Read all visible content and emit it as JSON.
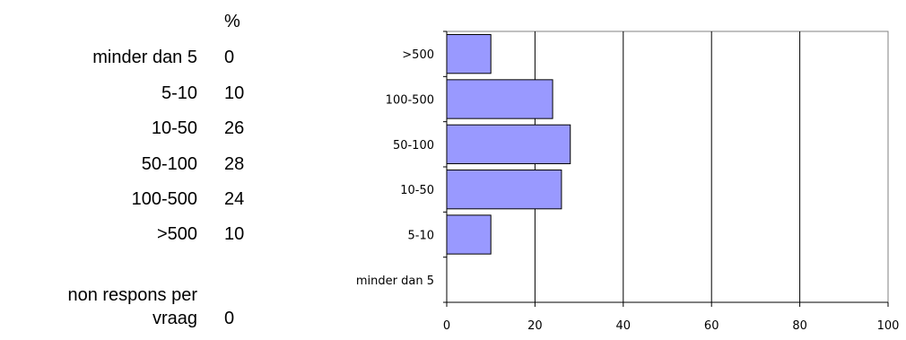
{
  "table": {
    "percent_header": "%",
    "rows": [
      {
        "label": "minder dan 5",
        "value": "0"
      },
      {
        "label": "5-10",
        "value": "10"
      },
      {
        "label": "10-50",
        "value": "26"
      },
      {
        "label": "50-100",
        "value": "28"
      },
      {
        "label": "100-500",
        "value": "24"
      },
      {
        "label": ">500",
        "value": "10"
      }
    ],
    "nonresponse_label_line1": "non respons per",
    "nonresponse_label_line2": "vraag",
    "nonresponse_value": "0"
  },
  "chart_data": {
    "type": "bar",
    "orientation": "horizontal",
    "categories": [
      "minder dan 5",
      "5-10",
      "10-50",
      "50-100",
      "100-500",
      ">500"
    ],
    "values": [
      0,
      10,
      26,
      28,
      24,
      10
    ],
    "xlim": [
      0,
      100
    ],
    "xticks": [
      "0",
      "20",
      "40",
      "60",
      "80",
      "100"
    ],
    "grid": "vertical",
    "legend": "none",
    "bar_color": "#9999ff",
    "bar_edge_color": "#000000",
    "grid_color": "#000000",
    "frame_color": "#808080"
  }
}
